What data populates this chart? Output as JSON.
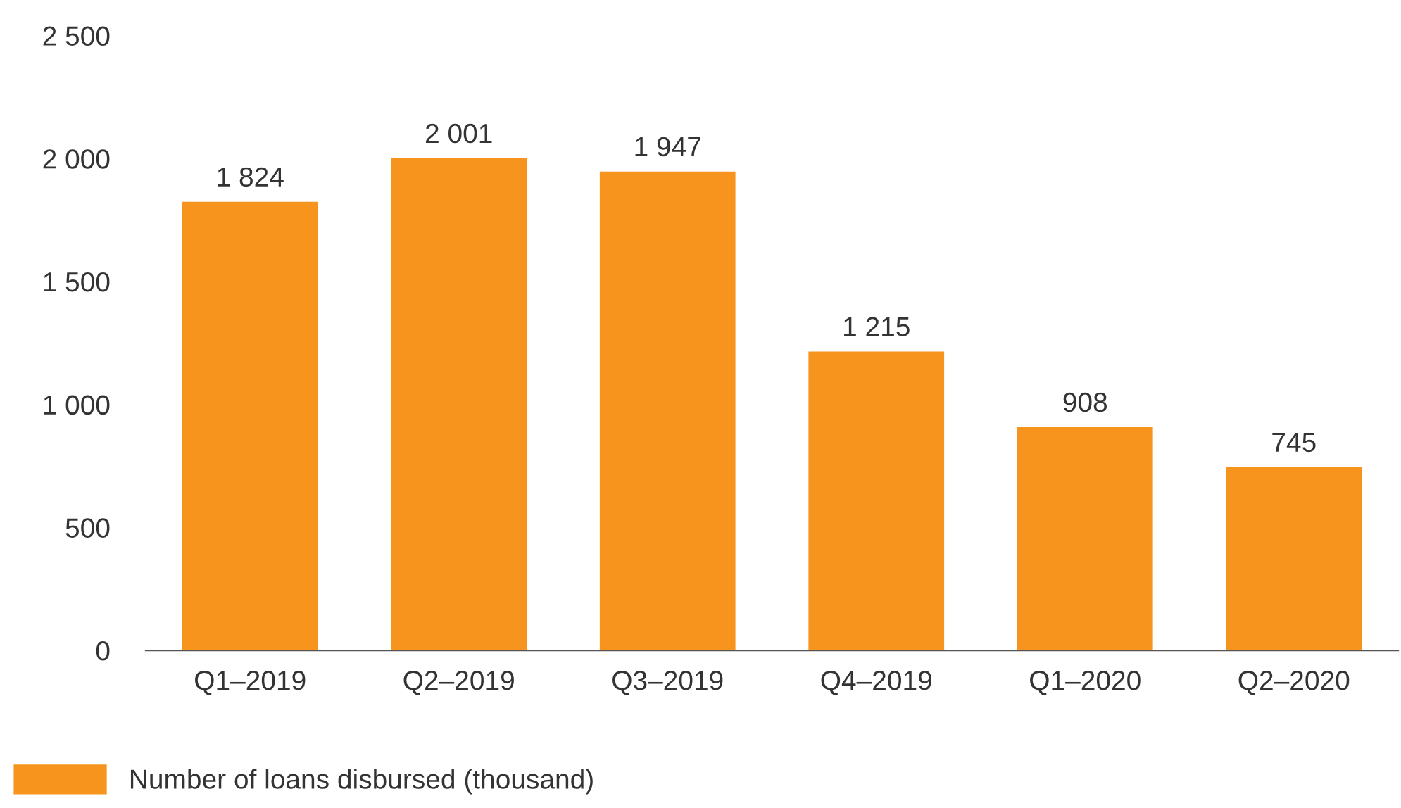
{
  "chart_data": {
    "type": "bar",
    "categories": [
      "Q1–2019",
      "Q2–2019",
      "Q3–2019",
      "Q4–2019",
      "Q1–2020",
      "Q2–2020"
    ],
    "series": [
      {
        "name": "Number of loans disbursed (thousand)",
        "color": "#f7941d",
        "values": [
          1824,
          2001,
          1947,
          1215,
          908,
          745
        ],
        "value_labels": [
          "1 824",
          "2 001",
          "1 947",
          "1 215",
          "908",
          "745"
        ]
      }
    ],
    "ylim": [
      0,
      2500
    ],
    "yticks": [
      0,
      500,
      {
        "value": 1000,
        "label": "1 000"
      },
      {
        "value": 1500,
        "label": "1 500"
      },
      {
        "value": 2000,
        "label": "2 000"
      },
      {
        "value": 2500,
        "label": "2 500"
      }
    ],
    "grid": false,
    "legend": "bottom left"
  }
}
